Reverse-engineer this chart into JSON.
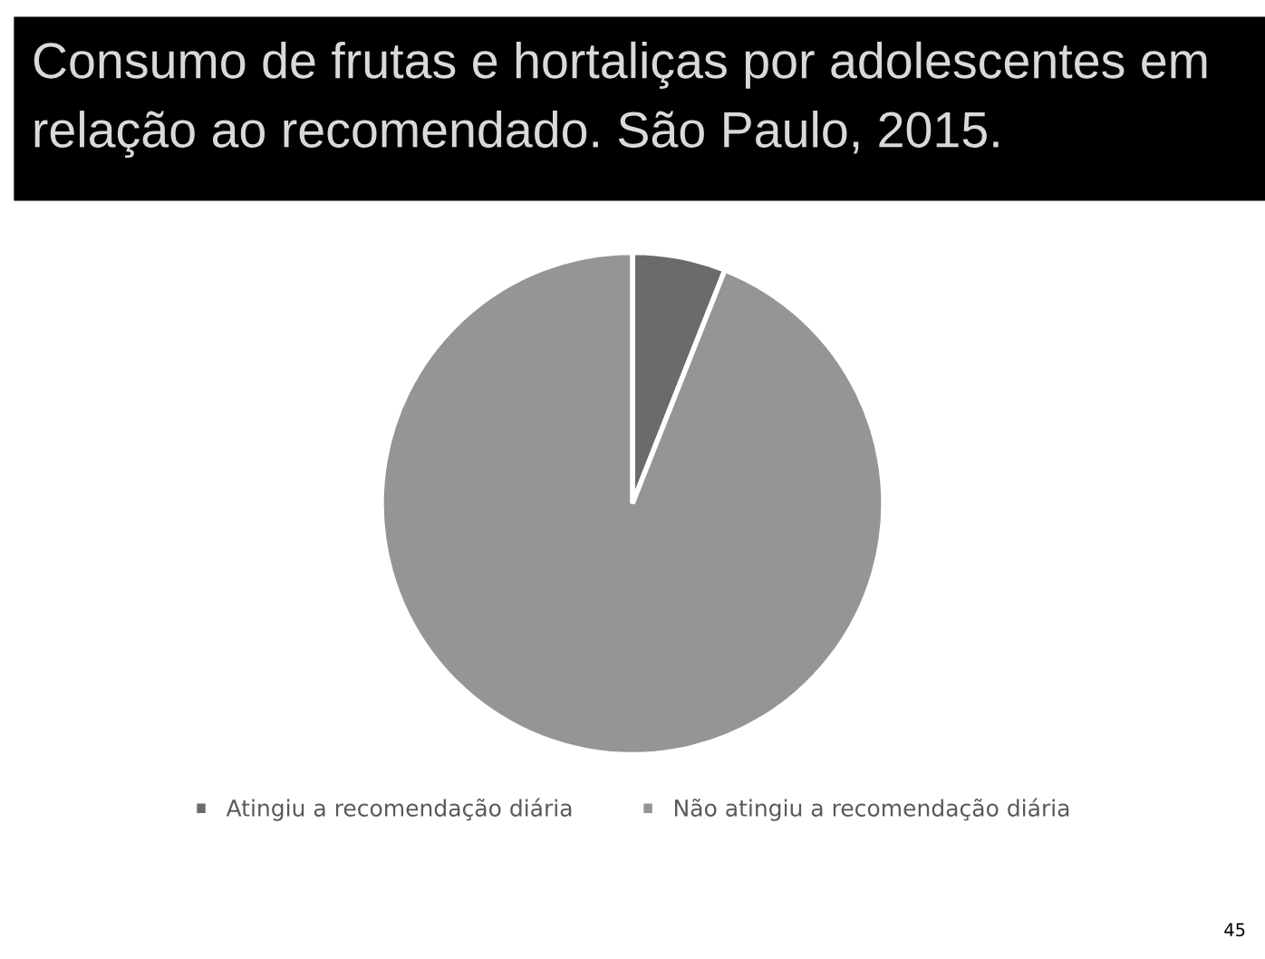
{
  "chart_data": {
    "type": "pie",
    "title": "Consumo de frutas e hortaliças por adolescentes em relação ao recomendado. São Paulo, 2015.",
    "categories": [
      "Atingiu a recomendação diária",
      "Não atingiu a recomendação diária"
    ],
    "values": [
      6,
      94
    ],
    "colors": [
      "#6b6b6b",
      "#959595"
    ],
    "legend": "bottom",
    "annotations": [
      "45"
    ]
  }
}
